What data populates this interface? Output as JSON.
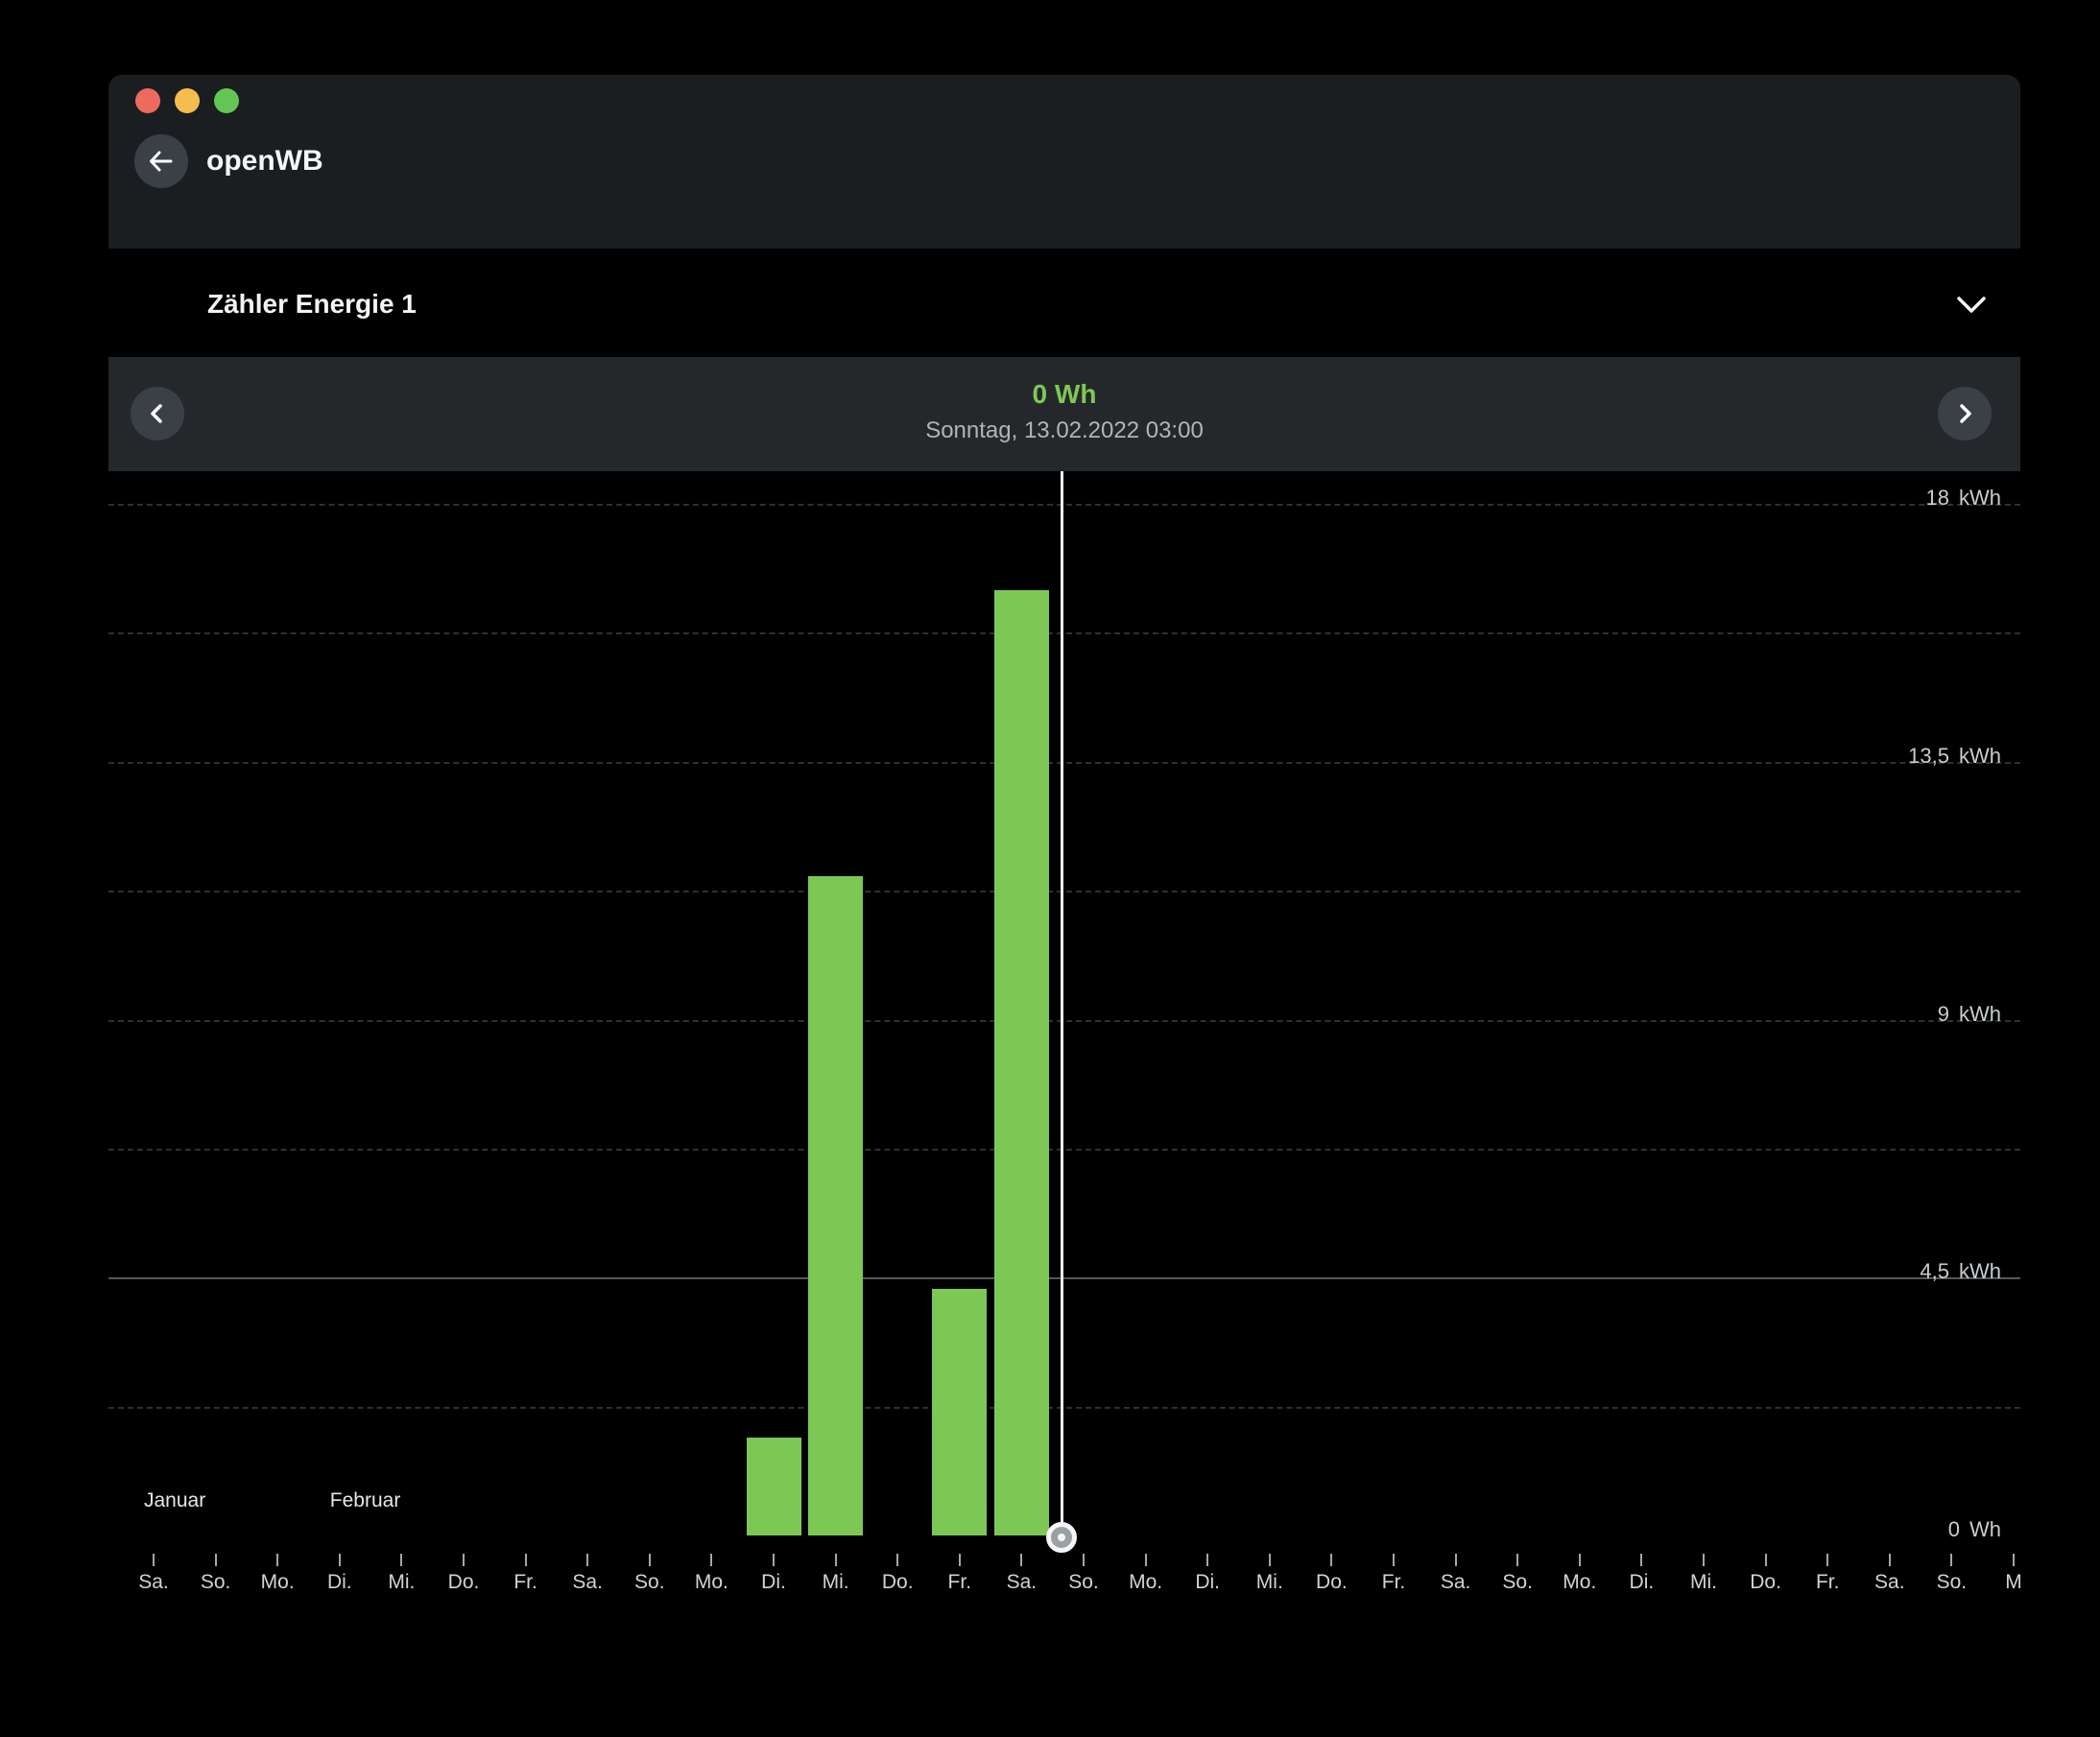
{
  "window": {
    "title": "openWB"
  },
  "icons": {
    "back": "arrow-left-icon",
    "collapse": "chevron-down-icon",
    "prev": "chevron-left-icon",
    "next": "chevron-right-icon"
  },
  "colors": {
    "background": "#000000",
    "titlebar": "#1b1e20",
    "navbar": "#25282b",
    "accent_green": "#7dc855",
    "traffic_red": "#ee6a5f",
    "traffic_yellow": "#f5bd4f",
    "traffic_green": "#62c554"
  },
  "meter": {
    "label": "Zähler Energie 1"
  },
  "chart_data": {
    "type": "bar",
    "unit": "kWh",
    "ylim": [
      0,
      18
    ],
    "grid_step_kwh": 2.25,
    "emphasized_gridline_kwh": 4.5,
    "y_axis_labels": [
      {
        "value": 18,
        "text": "18",
        "unit": "kWh"
      },
      {
        "value": 13.5,
        "text": "13,5",
        "unit": "kWh"
      },
      {
        "value": 9,
        "text": "9",
        "unit": "kWh"
      },
      {
        "value": 4.5,
        "text": "4,5",
        "unit": "kWh"
      },
      {
        "value": 0,
        "text": "0",
        "unit": "Wh"
      }
    ],
    "categories": [
      "Sa.",
      "So.",
      "Mo.",
      "Di.",
      "Mi.",
      "Do.",
      "Fr.",
      "Sa.",
      "So.",
      "Mo.",
      "Di.",
      "Mi.",
      "Do.",
      "Fr.",
      "Sa.",
      "So.",
      "Mo.",
      "Di.",
      "Mi.",
      "Do.",
      "Fr.",
      "Sa.",
      "So.",
      "Mo.",
      "Di.",
      "Mi.",
      "Do.",
      "Fr.",
      "Sa.",
      "So.",
      "M"
    ],
    "values_kwh": [
      0,
      0,
      0,
      0,
      0,
      0,
      0,
      0,
      0,
      0,
      1.7,
      11.5,
      0,
      4.3,
      16.5,
      0,
      0,
      0,
      0,
      0,
      0,
      0,
      0,
      0,
      0,
      0,
      0,
      0,
      0,
      0,
      0
    ],
    "months": [
      {
        "label": "Januar",
        "tick_index": 0
      },
      {
        "label": "Februar",
        "tick_index": 3
      }
    ],
    "bar_color": "#7dc855",
    "cursor": {
      "tick_index": 14.65,
      "value_label": "0 Wh",
      "datetime_label": "Sonntag, 13.02.2022 03:00"
    }
  }
}
